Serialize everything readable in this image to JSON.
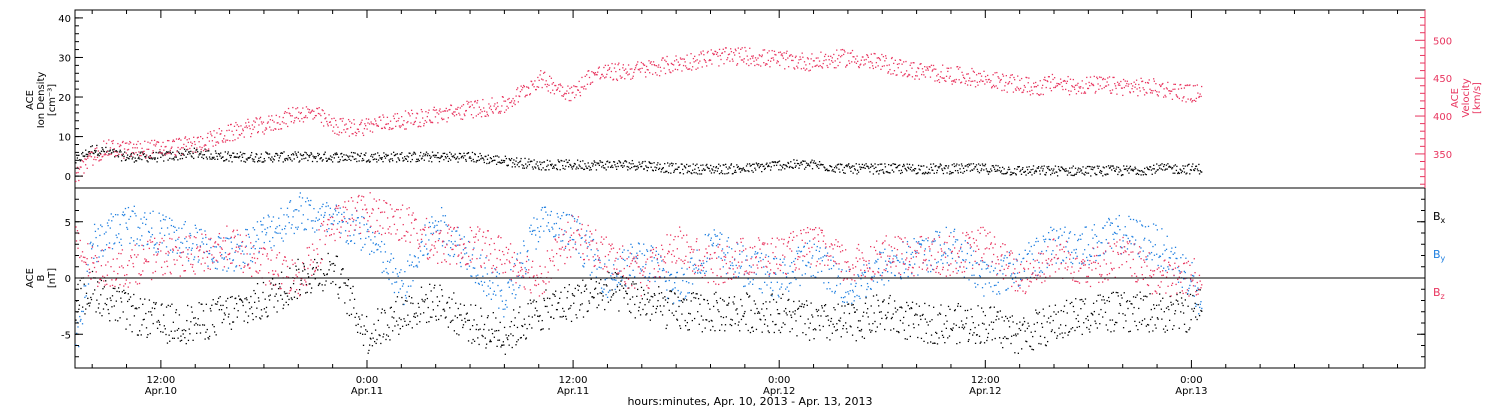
{
  "x_footer_label": "hours:minutes, Apr. 10, 2013 - Apr. 13, 2013",
  "x_ticks": [
    {
      "time": "12:00",
      "date": "Apr.10",
      "hours": 12
    },
    {
      "time": "0:00",
      "date": "Apr.11",
      "hours": 24
    },
    {
      "time": "12:00",
      "date": "Apr.11",
      "hours": 36
    },
    {
      "time": "0:00",
      "date": "Apr.12",
      "hours": 48
    },
    {
      "time": "12:00",
      "date": "Apr.12",
      "hours": 60
    },
    {
      "time": "0:00",
      "date": "Apr.13",
      "hours": 72
    }
  ],
  "colors": {
    "black": "#000000",
    "red": "#e8355f",
    "blue": "#1f7fe0"
  },
  "chart_data": [
    {
      "type": "scatter",
      "panel": "top",
      "left_ylabel": [
        "ACE",
        "Ion Density",
        "[cm⁻³]"
      ],
      "right_ylabel": [
        "ACE",
        "Velocity",
        "[km/s]"
      ],
      "xlim_hours": [
        7,
        85.6
      ],
      "data_end_hours": 72.6,
      "left_ylim": [
        -3,
        42
      ],
      "left_ticks": [
        0,
        10,
        20,
        30,
        40
      ],
      "right_ylim": [
        305,
        540
      ],
      "right_ticks": [
        350,
        400,
        450,
        500
      ],
      "series": [
        {
          "name": "Ion Density",
          "axis": "left",
          "color": "#000000",
          "x": [
            7,
            8,
            10,
            12,
            14,
            16,
            18,
            20,
            22,
            24,
            26,
            28,
            30,
            32,
            34,
            36,
            38,
            40,
            42,
            44,
            46,
            48,
            50,
            52,
            54,
            56,
            58,
            60,
            62,
            64,
            66,
            68,
            70,
            72,
            72.6
          ],
          "y": [
            4,
            7,
            5,
            5,
            6,
            5,
            5,
            5,
            5,
            5,
            5,
            5,
            5,
            4,
            3,
            3,
            3,
            3,
            2,
            2,
            2,
            3,
            3,
            2,
            2,
            2,
            2,
            2,
            1.5,
            1.5,
            1.5,
            1.5,
            2,
            2,
            2
          ]
        },
        {
          "name": "Velocity",
          "axis": "right",
          "color": "#e8355f",
          "x": [
            7,
            7.5,
            8,
            8.5,
            9,
            10,
            12,
            14,
            15,
            16,
            17,
            18,
            19,
            20,
            21,
            22,
            23,
            24,
            25,
            26,
            27,
            28,
            29,
            30,
            31,
            32,
            33,
            34,
            35,
            36,
            37,
            38,
            40,
            42,
            44,
            46,
            48,
            50,
            52,
            54,
            56,
            58,
            60,
            61,
            62,
            63,
            64,
            65,
            66,
            68,
            70,
            72,
            72.6
          ],
          "y": [
            320,
            335,
            345,
            355,
            358,
            356,
            358,
            363,
            370,
            378,
            385,
            388,
            395,
            405,
            403,
            388,
            385,
            388,
            392,
            395,
            398,
            402,
            405,
            410,
            412,
            415,
            432,
            450,
            440,
            430,
            455,
            458,
            462,
            470,
            478,
            480,
            475,
            472,
            478,
            470,
            460,
            455,
            450,
            445,
            442,
            438,
            445,
            440,
            442,
            440,
            438,
            430,
            432
          ]
        }
      ]
    },
    {
      "type": "scatter",
      "panel": "bottom",
      "ylabel": [
        "ACE",
        "B",
        "[nT]"
      ],
      "xlim_hours": [
        7,
        85.6
      ],
      "data_end_hours": 72.6,
      "ylim": [
        -8,
        8
      ],
      "yticks": [
        -5,
        0,
        5
      ],
      "zero_line": true,
      "series": [
        {
          "name": "B",
          "subscript": "x",
          "color": "#000000",
          "x": [
            7,
            8,
            10,
            12,
            14,
            16,
            18,
            20,
            22,
            24,
            26,
            28,
            30,
            32,
            34,
            36,
            38,
            40,
            42,
            44,
            46,
            48,
            50,
            52,
            54,
            56,
            58,
            60,
            62,
            64,
            66,
            68,
            70,
            72,
            72.6
          ],
          "y": [
            -2,
            -1,
            -3,
            -4,
            -4,
            -3,
            -2,
            0,
            1,
            -5,
            -3,
            -2,
            -4,
            -5,
            -3,
            -2,
            -1,
            -2,
            -3,
            -3,
            -3,
            -3,
            -4,
            -4,
            -3,
            -4,
            -4,
            -4,
            -5,
            -4,
            -3,
            -3,
            -3,
            -3,
            -2
          ]
        },
        {
          "name": "B",
          "subscript": "y",
          "color": "#1f7fe0",
          "x": [
            7,
            8,
            10,
            12,
            14,
            16,
            18,
            20,
            22,
            24,
            26,
            28,
            30,
            32,
            34,
            36,
            38,
            40,
            42,
            44,
            46,
            48,
            50,
            52,
            54,
            56,
            58,
            60,
            62,
            64,
            66,
            68,
            70,
            72,
            72.6
          ],
          "y": [
            -6,
            3,
            5,
            4,
            3,
            2,
            4,
            6,
            5,
            4,
            -1,
            5,
            2,
            -2,
            5,
            4,
            0,
            2,
            -1,
            3,
            1,
            0,
            2,
            -1,
            1,
            2,
            3,
            0,
            1,
            3,
            3,
            4,
            3,
            0,
            -3.5
          ]
        },
        {
          "name": "B",
          "subscript": "z",
          "color": "#e8355f",
          "x": [
            7,
            8,
            10,
            12,
            14,
            16,
            18,
            20,
            22,
            24,
            26,
            28,
            30,
            32,
            34,
            36,
            38,
            40,
            42,
            44,
            46,
            48,
            50,
            52,
            54,
            56,
            58,
            60,
            62,
            64,
            66,
            68,
            70,
            72,
            72.6
          ],
          "y": [
            3,
            1,
            1,
            2,
            2,
            3,
            1,
            0,
            5,
            6,
            5,
            3,
            3,
            2,
            0,
            4,
            2,
            0,
            3,
            1,
            2,
            2,
            3,
            1,
            2,
            2,
            2,
            3,
            0,
            2,
            1,
            2,
            0,
            0,
            0
          ]
        }
      ]
    }
  ]
}
